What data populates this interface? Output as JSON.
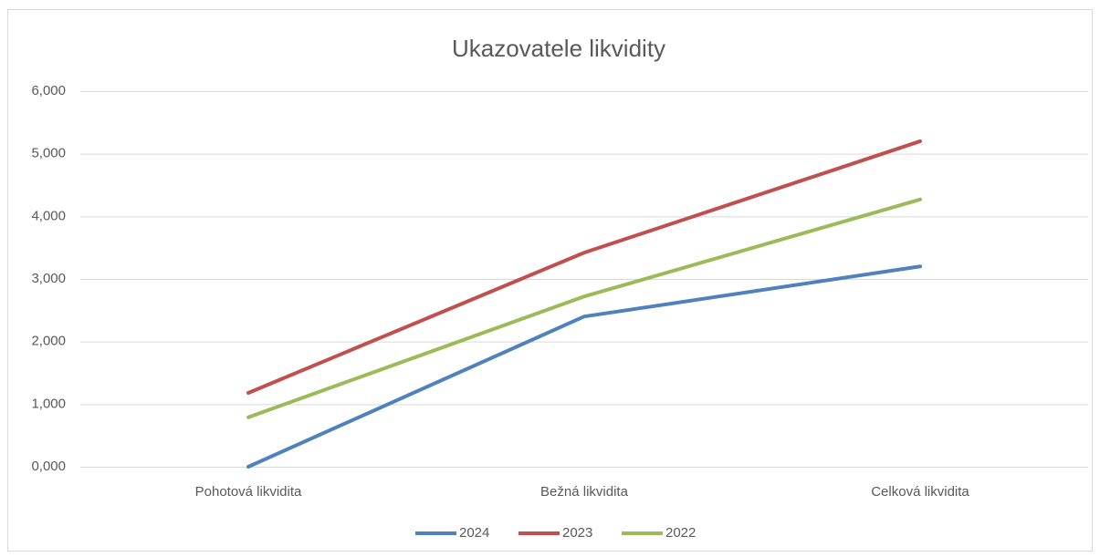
{
  "chart_data": {
    "type": "line",
    "title": "Ukazovatele likvidity",
    "categories": [
      "Pohotová likvidita",
      "Bežná likvidita",
      "Celková likvidita"
    ],
    "series": [
      {
        "name": "2024",
        "color": "#4f81bd",
        "values": [
          0,
          2.4,
          3.2
        ]
      },
      {
        "name": "2023",
        "color": "#c0504d",
        "values": [
          1.18,
          3.42,
          5.2
        ]
      },
      {
        "name": "2022",
        "color": "#9bbb59",
        "values": [
          0.79,
          2.72,
          4.27
        ]
      }
    ],
    "ylim": [
      0,
      6
    ],
    "yticks": [
      {
        "value": 0,
        "label": "0,000"
      },
      {
        "value": 1,
        "label": "1,000"
      },
      {
        "value": 2,
        "label": "2,000"
      },
      {
        "value": 3,
        "label": "3,000"
      },
      {
        "value": 4,
        "label": "4,000"
      },
      {
        "value": 5,
        "label": "5,000"
      },
      {
        "value": 6,
        "label": "6,000"
      }
    ],
    "grid": true,
    "legend": "bottom"
  }
}
